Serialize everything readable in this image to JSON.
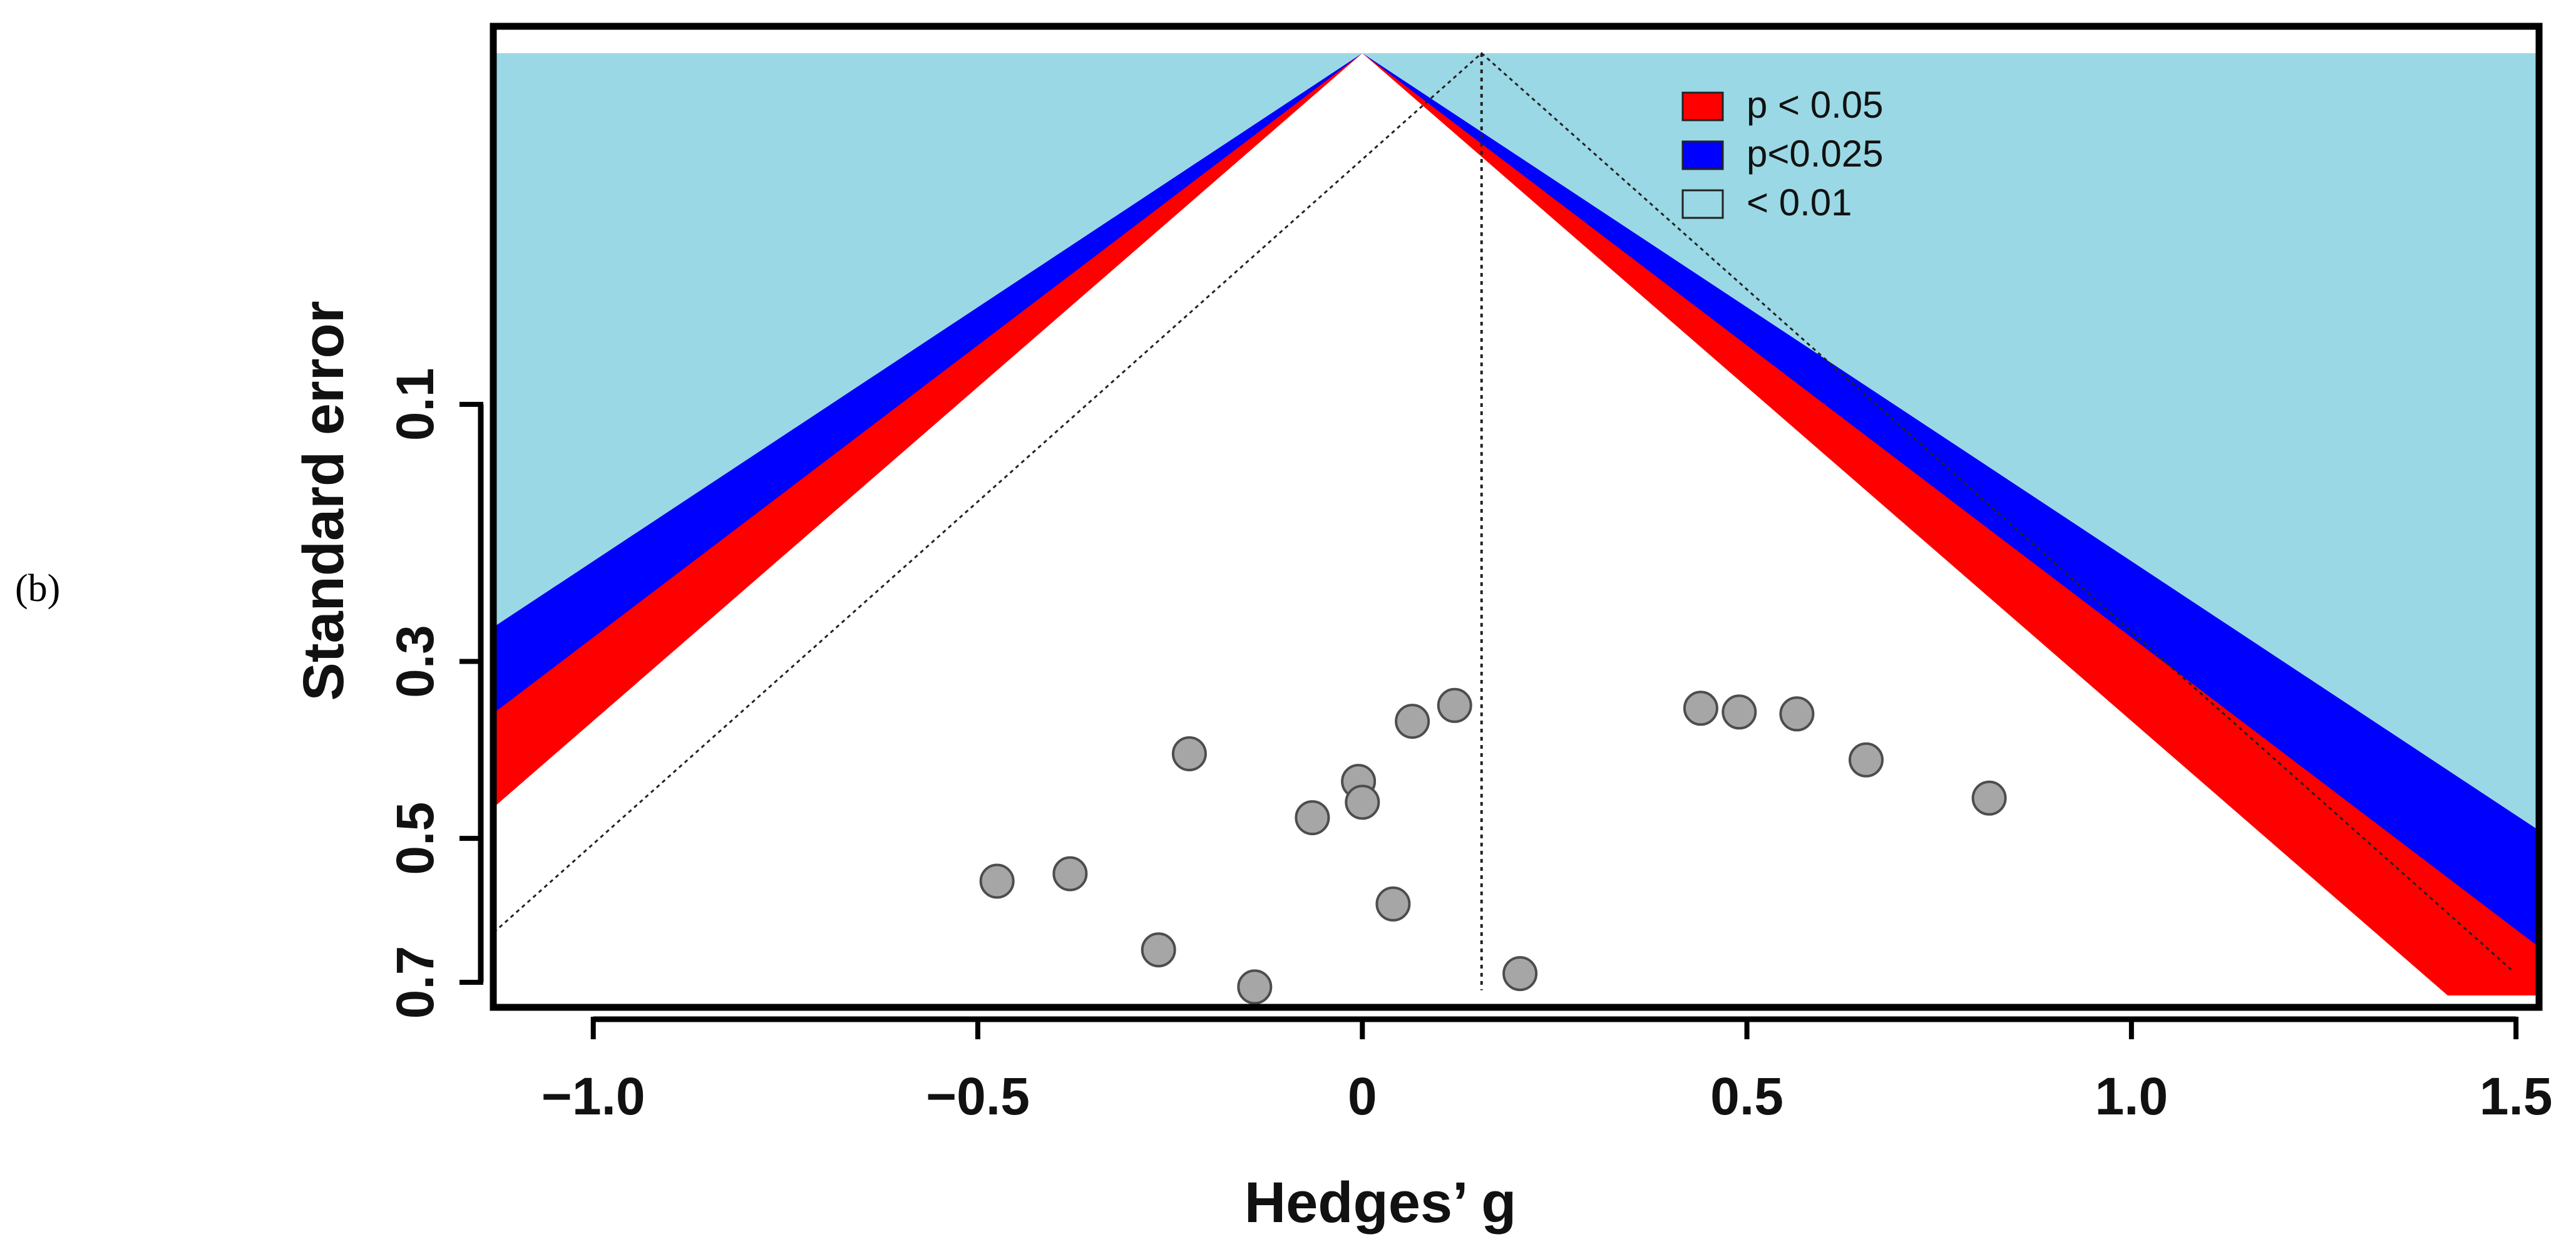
{
  "panel_label": "(b)",
  "chart_data": {
    "type": "scatter",
    "title": "",
    "xlabel": "Hedges’ g",
    "ylabel": "Standard error",
    "xlim": [
      -1.13,
      1.53
    ],
    "ylim": [
      0.0,
      0.72
    ],
    "y_inverted": true,
    "y_scale": "sqrt",
    "x_ticks": [
      {
        "value": -1.0,
        "label": "−1.0"
      },
      {
        "value": -0.5,
        "label": "−0.5"
      },
      {
        "value": 0.0,
        "label": "0"
      },
      {
        "value": 0.5,
        "label": "0.5"
      },
      {
        "value": 1.0,
        "label": "1.0"
      },
      {
        "value": 1.5,
        "label": "1.5"
      }
    ],
    "y_ticks": [
      {
        "value": 0.1,
        "label": "0.1"
      },
      {
        "value": 0.3,
        "label": "0.3"
      },
      {
        "value": 0.5,
        "label": "0.5"
      },
      {
        "value": 0.7,
        "label": "0.7"
      }
    ],
    "pooled_estimate": 0.155,
    "null_center": 0.0,
    "contour_z": {
      "p05": 1.96,
      "p025": 2.24,
      "p01": 2.576
    },
    "studies": [
      {
        "g": 0.12,
        "se": 0.345
      },
      {
        "g": 0.065,
        "se": 0.362
      },
      {
        "g": -0.225,
        "se": 0.398
      },
      {
        "g": -0.005,
        "se": 0.43
      },
      {
        "g": 0.0,
        "se": 0.455
      },
      {
        "g": -0.065,
        "se": 0.474
      },
      {
        "g": 0.44,
        "se": 0.348
      },
      {
        "g": 0.49,
        "se": 0.352
      },
      {
        "g": 0.565,
        "se": 0.354
      },
      {
        "g": 0.655,
        "se": 0.405
      },
      {
        "g": 0.815,
        "se": 0.45
      },
      {
        "g": -0.38,
        "se": 0.546
      },
      {
        "g": -0.475,
        "se": 0.556
      },
      {
        "g": 0.04,
        "se": 0.587
      },
      {
        "g": -0.265,
        "se": 0.652
      },
      {
        "g": 0.205,
        "se": 0.687
      },
      {
        "g": -0.14,
        "se": 0.707
      }
    ],
    "legend": {
      "position": "top-center",
      "entries": [
        {
          "label": "p < 0.05",
          "color": "#ff0000"
        },
        {
          "label": "p<0.025",
          "color": "#0000ff"
        },
        {
          "label": "< 0.01",
          "color": "#9ad8e5"
        }
      ]
    },
    "colors": {
      "outer": "#9ad8e5",
      "p05": "#ff0000",
      "p025": "#0000ff",
      "inner": "#ffffff",
      "points_fill": "#a6a6a6",
      "points_stroke": "#4d4d4d"
    }
  }
}
